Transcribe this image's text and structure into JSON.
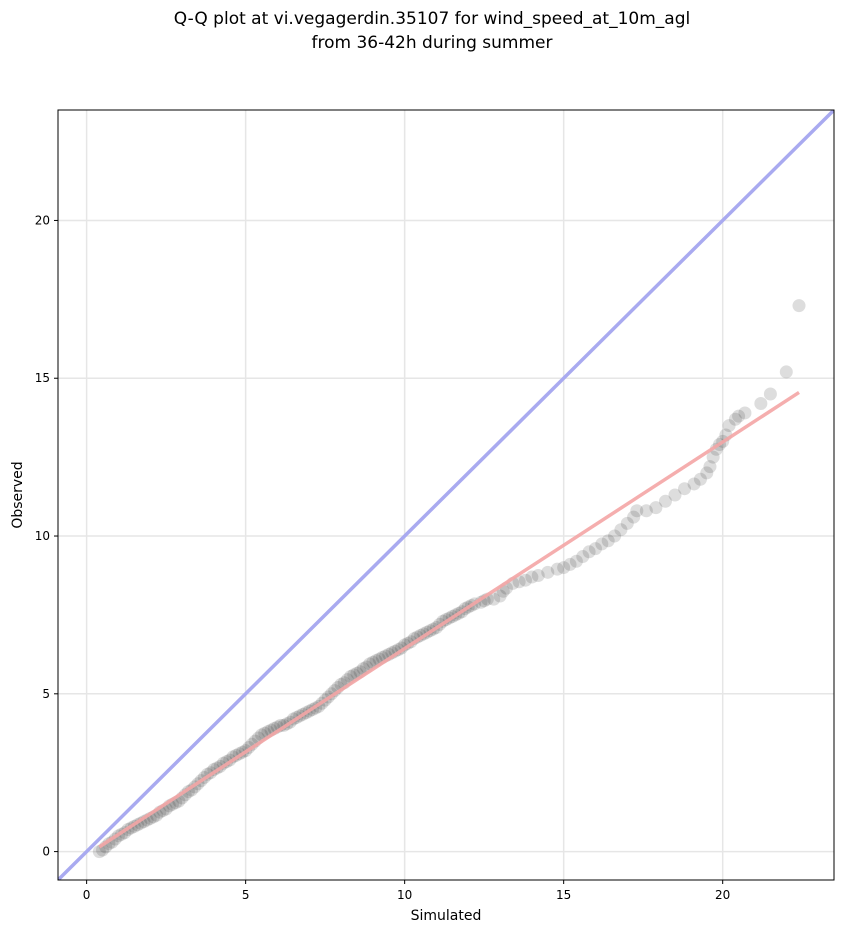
{
  "chart_data": {
    "type": "scatter",
    "title_lines": [
      "Q-Q plot at vi.vegagerdin.35107 for wind_speed_at_10m_agl",
      "from 36-42h during summer"
    ],
    "xlabel": "Simulated",
    "ylabel": "Observed",
    "xlim": [
      -0.9,
      23.5
    ],
    "ylim": [
      -0.9,
      23.5
    ],
    "xticks": [
      0,
      5,
      10,
      15,
      20
    ],
    "yticks": [
      0,
      5,
      10,
      15,
      20
    ],
    "grid": true,
    "colors": {
      "points": "#1a1a1a",
      "identity_line": "#a9aaf0",
      "fit_line": "#f4a6a6",
      "fit_line_core": "#8b0000"
    },
    "identity_line": {
      "x": [
        -0.9,
        23.5
      ],
      "y": [
        -0.9,
        23.5
      ]
    },
    "fit_line": {
      "x": [
        0.4,
        22.4
      ],
      "y": [
        0.15,
        14.55
      ]
    },
    "series": [
      {
        "points": [
          [
            0.4,
            0.0
          ],
          [
            0.5,
            0.05
          ],
          [
            0.6,
            0.15
          ],
          [
            0.7,
            0.25
          ],
          [
            0.8,
            0.3
          ],
          [
            0.9,
            0.4
          ],
          [
            1.0,
            0.5
          ],
          [
            1.1,
            0.55
          ],
          [
            1.2,
            0.6
          ],
          [
            1.3,
            0.7
          ],
          [
            1.4,
            0.75
          ],
          [
            1.5,
            0.8
          ],
          [
            1.6,
            0.85
          ],
          [
            1.7,
            0.9
          ],
          [
            1.8,
            0.95
          ],
          [
            1.9,
            1.0
          ],
          [
            2.0,
            1.05
          ],
          [
            2.1,
            1.1
          ],
          [
            2.2,
            1.15
          ],
          [
            2.3,
            1.25
          ],
          [
            2.4,
            1.3
          ],
          [
            2.5,
            1.35
          ],
          [
            2.6,
            1.45
          ],
          [
            2.7,
            1.5
          ],
          [
            2.8,
            1.55
          ],
          [
            2.9,
            1.6
          ],
          [
            3.0,
            1.7
          ],
          [
            3.1,
            1.8
          ],
          [
            3.2,
            1.9
          ],
          [
            3.3,
            1.95
          ],
          [
            3.4,
            2.05
          ],
          [
            3.5,
            2.15
          ],
          [
            3.6,
            2.25
          ],
          [
            3.7,
            2.35
          ],
          [
            3.8,
            2.45
          ],
          [
            3.9,
            2.5
          ],
          [
            4.0,
            2.6
          ],
          [
            4.1,
            2.65
          ],
          [
            4.2,
            2.7
          ],
          [
            4.3,
            2.8
          ],
          [
            4.4,
            2.85
          ],
          [
            4.5,
            2.9
          ],
          [
            4.6,
            3.0
          ],
          [
            4.7,
            3.05
          ],
          [
            4.8,
            3.1
          ],
          [
            4.9,
            3.15
          ],
          [
            5.0,
            3.2
          ],
          [
            5.1,
            3.3
          ],
          [
            5.2,
            3.4
          ],
          [
            5.3,
            3.5
          ],
          [
            5.4,
            3.6
          ],
          [
            5.5,
            3.7
          ],
          [
            5.6,
            3.75
          ],
          [
            5.7,
            3.8
          ],
          [
            5.8,
            3.85
          ],
          [
            5.9,
            3.9
          ],
          [
            6.0,
            3.95
          ],
          [
            6.1,
            4.0
          ],
          [
            6.2,
            4.0
          ],
          [
            6.3,
            4.05
          ],
          [
            6.4,
            4.1
          ],
          [
            6.5,
            4.2
          ],
          [
            6.6,
            4.25
          ],
          [
            6.7,
            4.3
          ],
          [
            6.8,
            4.35
          ],
          [
            6.9,
            4.4
          ],
          [
            7.0,
            4.45
          ],
          [
            7.1,
            4.5
          ],
          [
            7.2,
            4.55
          ],
          [
            7.3,
            4.6
          ],
          [
            7.4,
            4.7
          ],
          [
            7.5,
            4.8
          ],
          [
            7.6,
            4.9
          ],
          [
            7.7,
            5.0
          ],
          [
            7.8,
            5.1
          ],
          [
            7.9,
            5.2
          ],
          [
            8.0,
            5.3
          ],
          [
            8.1,
            5.35
          ],
          [
            8.2,
            5.45
          ],
          [
            8.3,
            5.55
          ],
          [
            8.4,
            5.6
          ],
          [
            8.5,
            5.65
          ],
          [
            8.6,
            5.7
          ],
          [
            8.7,
            5.8
          ],
          [
            8.8,
            5.85
          ],
          [
            8.9,
            5.95
          ],
          [
            9.0,
            6.0
          ],
          [
            9.1,
            6.05
          ],
          [
            9.2,
            6.1
          ],
          [
            9.3,
            6.15
          ],
          [
            9.4,
            6.2
          ],
          [
            9.5,
            6.25
          ],
          [
            9.6,
            6.3
          ],
          [
            9.7,
            6.35
          ],
          [
            9.8,
            6.4
          ],
          [
            9.9,
            6.45
          ],
          [
            10.0,
            6.55
          ],
          [
            10.1,
            6.6
          ],
          [
            10.2,
            6.65
          ],
          [
            10.3,
            6.75
          ],
          [
            10.4,
            6.8
          ],
          [
            10.5,
            6.85
          ],
          [
            10.6,
            6.9
          ],
          [
            10.7,
            6.95
          ],
          [
            10.8,
            7.0
          ],
          [
            10.9,
            7.05
          ],
          [
            11.0,
            7.1
          ],
          [
            11.1,
            7.2
          ],
          [
            11.2,
            7.3
          ],
          [
            11.3,
            7.35
          ],
          [
            11.4,
            7.4
          ],
          [
            11.5,
            7.45
          ],
          [
            11.6,
            7.5
          ],
          [
            11.7,
            7.55
          ],
          [
            11.8,
            7.6
          ],
          [
            11.9,
            7.7
          ],
          [
            12.0,
            7.75
          ],
          [
            12.1,
            7.8
          ],
          [
            12.2,
            7.85
          ],
          [
            12.4,
            7.9
          ],
          [
            12.5,
            7.95
          ],
          [
            12.6,
            8.0
          ],
          [
            12.8,
            8.0
          ],
          [
            13.0,
            8.1
          ],
          [
            13.1,
            8.25
          ],
          [
            13.2,
            8.35
          ],
          [
            13.4,
            8.5
          ],
          [
            13.6,
            8.55
          ],
          [
            13.8,
            8.6
          ],
          [
            14.0,
            8.7
          ],
          [
            14.2,
            8.75
          ],
          [
            14.5,
            8.85
          ],
          [
            14.8,
            8.95
          ],
          [
            15.0,
            9.0
          ],
          [
            15.2,
            9.1
          ],
          [
            15.4,
            9.2
          ],
          [
            15.6,
            9.35
          ],
          [
            15.8,
            9.5
          ],
          [
            16.0,
            9.6
          ],
          [
            16.2,
            9.75
          ],
          [
            16.4,
            9.85
          ],
          [
            16.6,
            10.0
          ],
          [
            16.8,
            10.2
          ],
          [
            17.0,
            10.4
          ],
          [
            17.2,
            10.6
          ],
          [
            17.3,
            10.8
          ],
          [
            17.6,
            10.8
          ],
          [
            17.9,
            10.9
          ],
          [
            18.2,
            11.1
          ],
          [
            18.5,
            11.3
          ],
          [
            18.8,
            11.5
          ],
          [
            19.1,
            11.65
          ],
          [
            19.3,
            11.8
          ],
          [
            19.5,
            12.0
          ],
          [
            19.6,
            12.2
          ],
          [
            19.7,
            12.5
          ],
          [
            19.8,
            12.75
          ],
          [
            19.9,
            12.9
          ],
          [
            20.0,
            13.0
          ],
          [
            20.1,
            13.2
          ],
          [
            20.2,
            13.5
          ],
          [
            20.4,
            13.7
          ],
          [
            20.5,
            13.8
          ],
          [
            20.7,
            13.9
          ],
          [
            21.2,
            14.2
          ],
          [
            21.5,
            14.5
          ],
          [
            22.0,
            15.2
          ],
          [
            22.4,
            17.3
          ]
        ]
      }
    ]
  }
}
